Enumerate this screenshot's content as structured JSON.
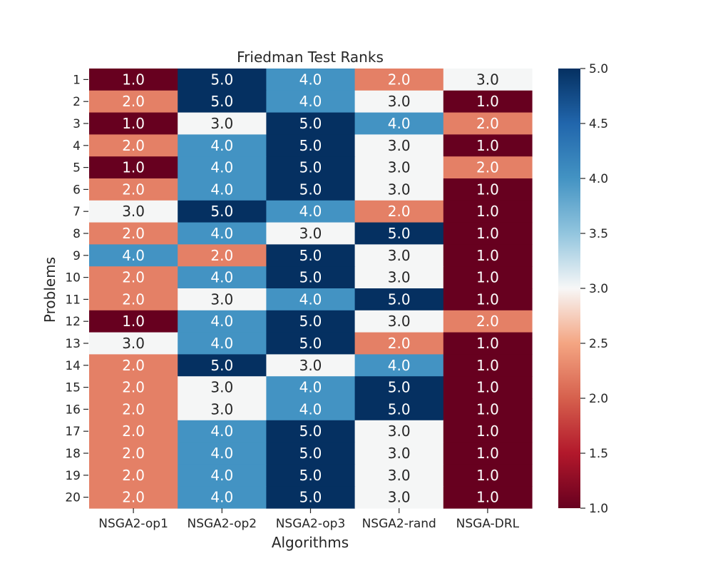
{
  "chart_data": {
    "type": "heatmap",
    "title": "Friedman Test Ranks",
    "xlabel": "Algorithms",
    "ylabel": "Problems",
    "x_categories": [
      "NSGA2-op1",
      "NSGA2-op2",
      "NSGA2-op3",
      "NSGA2-rand",
      "NSGA-DRL"
    ],
    "y_categories": [
      "1",
      "2",
      "3",
      "4",
      "5",
      "6",
      "7",
      "8",
      "9",
      "10",
      "11",
      "12",
      "13",
      "14",
      "15",
      "16",
      "17",
      "18",
      "19",
      "20"
    ],
    "values": [
      [
        1.0,
        5.0,
        4.0,
        2.0,
        3.0
      ],
      [
        2.0,
        5.0,
        4.0,
        3.0,
        1.0
      ],
      [
        1.0,
        3.0,
        5.0,
        4.0,
        2.0
      ],
      [
        2.0,
        4.0,
        5.0,
        3.0,
        1.0
      ],
      [
        1.0,
        4.0,
        5.0,
        3.0,
        2.0
      ],
      [
        2.0,
        4.0,
        5.0,
        3.0,
        1.0
      ],
      [
        3.0,
        5.0,
        4.0,
        2.0,
        1.0
      ],
      [
        2.0,
        4.0,
        3.0,
        5.0,
        1.0
      ],
      [
        4.0,
        2.0,
        5.0,
        3.0,
        1.0
      ],
      [
        2.0,
        4.0,
        5.0,
        3.0,
        1.0
      ],
      [
        2.0,
        3.0,
        4.0,
        5.0,
        1.0
      ],
      [
        1.0,
        4.0,
        5.0,
        3.0,
        2.0
      ],
      [
        3.0,
        4.0,
        5.0,
        2.0,
        1.0
      ],
      [
        2.0,
        5.0,
        3.0,
        4.0,
        1.0
      ],
      [
        2.0,
        3.0,
        4.0,
        5.0,
        1.0
      ],
      [
        2.0,
        3.0,
        4.0,
        5.0,
        1.0
      ],
      [
        2.0,
        4.0,
        5.0,
        3.0,
        1.0
      ],
      [
        2.0,
        4.0,
        5.0,
        3.0,
        1.0
      ],
      [
        2.0,
        4.0,
        5.0,
        3.0,
        1.0
      ],
      [
        2.0,
        4.0,
        5.0,
        3.0,
        1.0
      ]
    ],
    "value_format": "1 decimal",
    "colormap": "RdBu",
    "color_range": [
      1.0,
      5.0
    ],
    "level_colors": {
      "1": "#67001f",
      "2": "#e48066",
      "3": "#f5f6f6",
      "4": "#4393c3",
      "5": "#053061"
    },
    "colorbar_ticks": [
      "1.0",
      "1.5",
      "2.0",
      "2.5",
      "3.0",
      "3.5",
      "4.0",
      "4.5",
      "5.0"
    ],
    "grid": false
  }
}
